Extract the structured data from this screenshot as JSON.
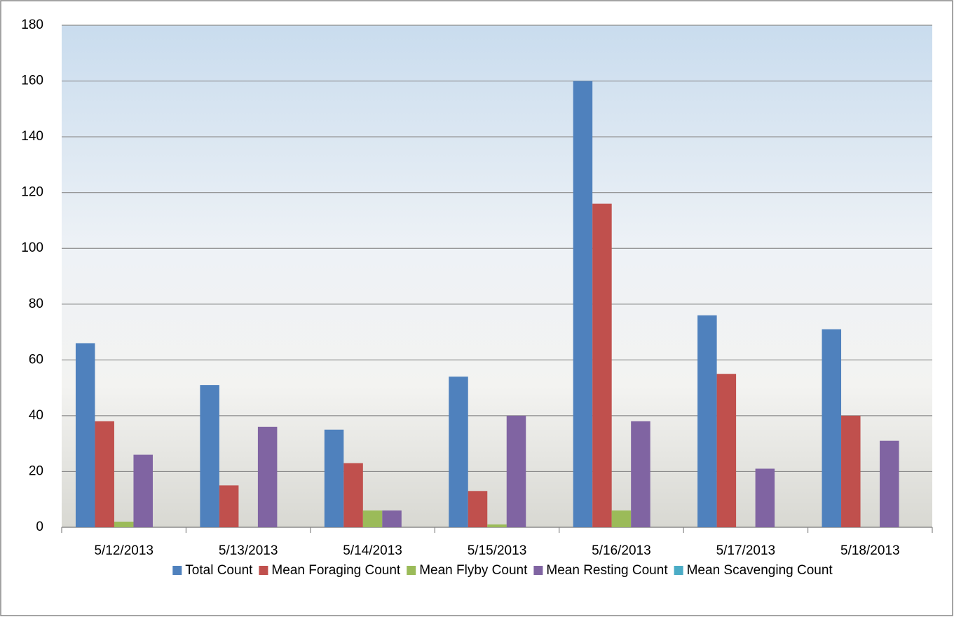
{
  "chart_data": {
    "type": "bar",
    "categories": [
      "5/12/2013",
      "5/13/2013",
      "5/14/2013",
      "5/15/2013",
      "5/16/2013",
      "5/17/2013",
      "5/18/2013"
    ],
    "series": [
      {
        "name": "Total Count",
        "color": "#4f81bd",
        "values": [
          66,
          51,
          35,
          54,
          160,
          76,
          71
        ]
      },
      {
        "name": "Mean Foraging Count",
        "color": "#c0504d",
        "values": [
          38,
          15,
          23,
          13,
          116,
          55,
          40
        ]
      },
      {
        "name": "Mean Flyby Count",
        "color": "#9bbb59",
        "values": [
          2,
          0,
          6,
          1,
          6,
          0,
          0
        ]
      },
      {
        "name": "Mean Resting Count",
        "color": "#8064a2",
        "values": [
          26,
          36,
          6,
          40,
          38,
          21,
          31
        ]
      },
      {
        "name": "Mean Scavenging Count",
        "color": "#4bacc6",
        "values": [
          0,
          0,
          0,
          0,
          0,
          0,
          0
        ]
      }
    ],
    "ylim": [
      0,
      180
    ],
    "yticks": [
      0,
      20,
      40,
      60,
      80,
      100,
      120,
      140,
      160,
      180
    ],
    "grid": true,
    "legend": "bottom"
  }
}
